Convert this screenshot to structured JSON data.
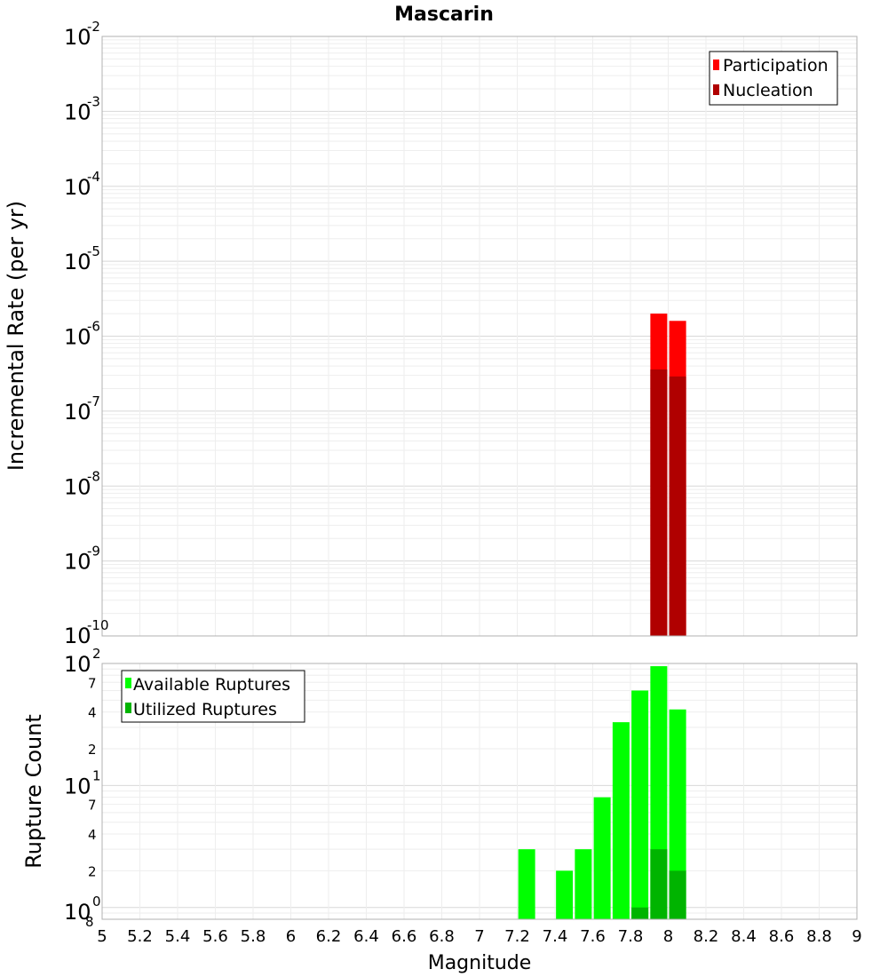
{
  "chart_data": [
    {
      "type": "bar",
      "title": "Mascarin",
      "ylabel": "Incremental Rate (per yr)",
      "xlabel": "",
      "y_scale": "log",
      "ylim": [
        1e-10,
        0.01
      ],
      "xlim": [
        5,
        9
      ],
      "y_ticks": [
        {
          "base": "10",
          "exp": "-2"
        },
        {
          "base": "10",
          "exp": "-3"
        },
        {
          "base": "10",
          "exp": "-4"
        },
        {
          "base": "10",
          "exp": "-5"
        },
        {
          "base": "10",
          "exp": "-6"
        },
        {
          "base": "10",
          "exp": "-7"
        },
        {
          "base": "10",
          "exp": "-8"
        },
        {
          "base": "10",
          "exp": "-9"
        },
        {
          "base": "10",
          "exp": "-10"
        }
      ],
      "legend_position": "top-right",
      "grid": true,
      "series": [
        {
          "name": "Participation",
          "color": "#ff0000",
          "points": [
            {
              "x": 7.95,
              "y": 2e-06
            },
            {
              "x": 8.05,
              "y": 1.6e-06
            }
          ]
        },
        {
          "name": "Nucleation",
          "color": "#b00000",
          "points": [
            {
              "x": 7.95,
              "y": 3.6e-07
            },
            {
              "x": 8.05,
              "y": 2.9e-07
            }
          ]
        }
      ]
    },
    {
      "type": "bar",
      "title": "",
      "ylabel": "Rupture Count",
      "xlabel": "Magnitude",
      "y_scale": "log",
      "ylim": [
        0.8,
        100
      ],
      "xlim": [
        5,
        9
      ],
      "x_ticks": [
        "5",
        "5.2",
        "5.4",
        "5.6",
        "5.8",
        "6",
        "6.2",
        "6.4",
        "6.6",
        "6.8",
        "7",
        "7.2",
        "7.4",
        "7.6",
        "7.8",
        "8",
        "8.2",
        "8.4",
        "8.6",
        "8.8",
        "9"
      ],
      "y_ticks": [
        {
          "base": "10",
          "exp": "2"
        },
        {
          "base": "10",
          "exp": "1"
        },
        {
          "base": "10",
          "exp": "0"
        }
      ],
      "y_minor_labels": [
        "7",
        "4",
        "2",
        "7",
        "4",
        "2",
        "8"
      ],
      "legend_position": "top-left",
      "grid": true,
      "series": [
        {
          "name": "Available Ruptures",
          "color": "#00ff00",
          "points": [
            {
              "x": 7.25,
              "y": 3
            },
            {
              "x": 7.45,
              "y": 2
            },
            {
              "x": 7.55,
              "y": 3
            },
            {
              "x": 7.65,
              "y": 8
            },
            {
              "x": 7.75,
              "y": 33
            },
            {
              "x": 7.85,
              "y": 60
            },
            {
              "x": 7.95,
              "y": 95
            },
            {
              "x": 8.05,
              "y": 42
            }
          ]
        },
        {
          "name": "Utilized Ruptures",
          "color": "#00b400",
          "points": [
            {
              "x": 7.85,
              "y": 1
            },
            {
              "x": 7.95,
              "y": 3
            },
            {
              "x": 8.05,
              "y": 2
            }
          ]
        }
      ]
    }
  ]
}
